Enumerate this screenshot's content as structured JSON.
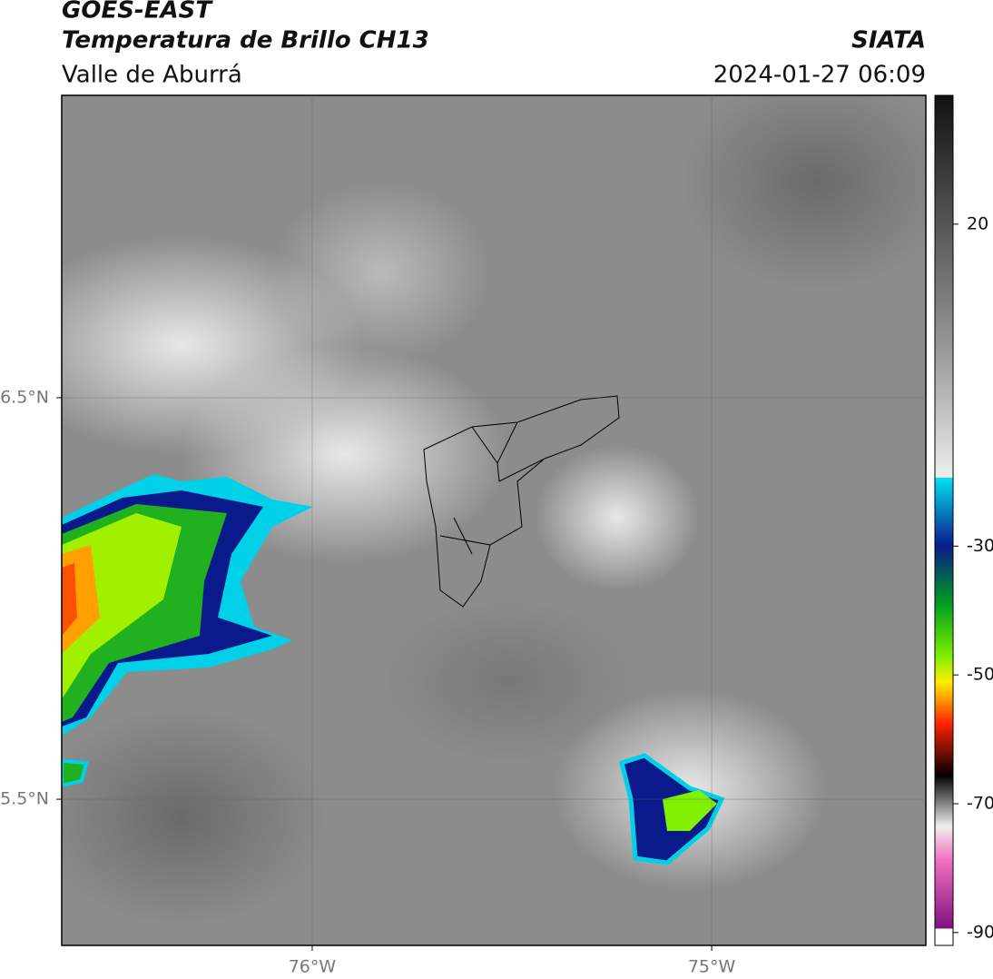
{
  "header": {
    "title": "GOES-EAST",
    "subtitle": "Temperatura de Brillo CH13",
    "region": "Valle de Aburrá",
    "source": "SIATA",
    "datetime": "2024-01-27 06:09"
  },
  "map": {
    "xlim": [
      -76.627,
      -74.464
    ],
    "ylim": [
      5.136,
      7.253
    ],
    "xticks": [
      {
        "value": -76,
        "label": "76°W"
      },
      {
        "value": -75,
        "label": "75°W"
      }
    ],
    "yticks": [
      {
        "value": 6.5,
        "label": "6.5°N"
      },
      {
        "value": 5.5,
        "label": "5.5°N"
      }
    ]
  },
  "colorbar": {
    "lim": [
      -92,
      40
    ],
    "ticks": [
      20,
      -30,
      -50,
      -70,
      -90
    ]
  }
}
